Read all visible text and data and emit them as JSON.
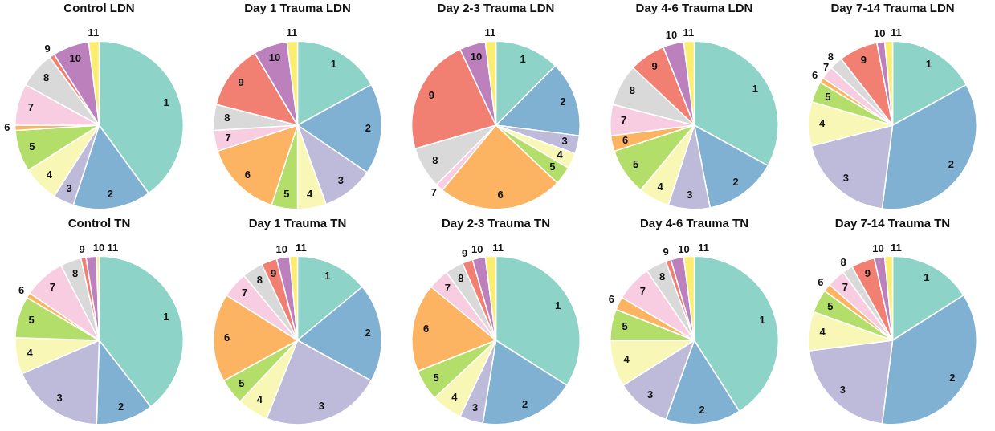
{
  "chart_data": [
    {
      "type": "pie",
      "title": "Control LDN",
      "categories": [
        "1",
        "2",
        "3",
        "4",
        "5",
        "6",
        "7",
        "8",
        "9",
        "10",
        "11"
      ],
      "values": [
        40,
        15,
        4,
        7,
        8,
        1,
        8,
        7,
        1,
        7,
        2
      ],
      "colors": [
        "#8dd3c7",
        "#80b1d3",
        "#bebada",
        "#f9f7b5",
        "#b3de69",
        "#fdb462",
        "#f9cde1",
        "#d9d9d9",
        "#f28072",
        "#bc80bd",
        "#fbed6f"
      ],
      "legend": false
    },
    {
      "type": "pie",
      "title": "Day 1 Trauma LDN",
      "categories": [
        "1",
        "2",
        "3",
        "4",
        "5",
        "6",
        "7",
        "8",
        "9",
        "10",
        "11"
      ],
      "values": [
        17,
        17.5,
        10,
        5.5,
        5,
        15,
        4,
        5,
        12.5,
        6.5,
        2
      ],
      "colors": [
        "#8dd3c7",
        "#80b1d3",
        "#bebada",
        "#f9f7b5",
        "#b3de69",
        "#fdb462",
        "#f9cde1",
        "#d9d9d9",
        "#f28072",
        "#bc80bd",
        "#fbed6f"
      ],
      "legend": false
    },
    {
      "type": "pie",
      "title": "Day 2-3 Trauma LDN",
      "categories": [
        "1",
        "2",
        "3",
        "4",
        "5",
        "6",
        "7",
        "8",
        "9",
        "10",
        "11"
      ],
      "values": [
        12.5,
        14.5,
        3.5,
        3,
        3.5,
        24,
        1.5,
        8,
        22.5,
        5,
        2
      ],
      "colors": [
        "#8dd3c7",
        "#80b1d3",
        "#bebada",
        "#f9f7b5",
        "#b3de69",
        "#fdb462",
        "#f9cde1",
        "#d9d9d9",
        "#f28072",
        "#bc80bd",
        "#fbed6f"
      ],
      "legend": false
    },
    {
      "type": "pie",
      "title": "Day 4-6 Trauma LDN",
      "categories": [
        "1",
        "2",
        "3",
        "4",
        "5",
        "6",
        "7",
        "8",
        "9",
        "10",
        "11"
      ],
      "values": [
        33,
        14,
        8,
        6,
        9,
        3,
        6,
        8,
        7,
        4,
        2
      ],
      "colors": [
        "#8dd3c7",
        "#80b1d3",
        "#bebada",
        "#f9f7b5",
        "#b3de69",
        "#fdb462",
        "#f9cde1",
        "#d9d9d9",
        "#f28072",
        "#bc80bd",
        "#fbed6f"
      ],
      "legend": false
    },
    {
      "type": "pie",
      "title": "Day 7-14 Trauma LDN",
      "categories": [
        "1",
        "2",
        "3",
        "4",
        "5",
        "6",
        "7",
        "8",
        "9",
        "10",
        "11"
      ],
      "values": [
        17,
        35,
        19,
        8.5,
        4,
        1,
        2.5,
        2.5,
        7.5,
        1.5,
        1.5
      ],
      "colors": [
        "#8dd3c7",
        "#80b1d3",
        "#bebada",
        "#f9f7b5",
        "#b3de69",
        "#fdb462",
        "#f9cde1",
        "#d9d9d9",
        "#f28072",
        "#bc80bd",
        "#fbed6f"
      ],
      "legend": false
    },
    {
      "type": "pie",
      "title": "Control TN",
      "categories": [
        "1",
        "2",
        "3",
        "4",
        "5",
        "6",
        "7",
        "8",
        "9",
        "10",
        "11"
      ],
      "values": [
        39.5,
        11,
        18,
        7,
        8,
        1,
        8,
        4,
        1,
        2,
        0.5
      ],
      "colors": [
        "#8dd3c7",
        "#80b1d3",
        "#bebada",
        "#f9f7b5",
        "#b3de69",
        "#fdb462",
        "#f9cde1",
        "#d9d9d9",
        "#f28072",
        "#bc80bd",
        "#fbed6f"
      ],
      "legend": false
    },
    {
      "type": "pie",
      "title": "Day 1 Trauma TN",
      "categories": [
        "1",
        "2",
        "3",
        "4",
        "5",
        "6",
        "7",
        "8",
        "9",
        "10",
        "11"
      ],
      "values": [
        14,
        19,
        23,
        6,
        5,
        17,
        5,
        4,
        3,
        2.5,
        1.5
      ],
      "colors": [
        "#8dd3c7",
        "#80b1d3",
        "#bebada",
        "#f9f7b5",
        "#b3de69",
        "#fdb462",
        "#f9cde1",
        "#d9d9d9",
        "#f28072",
        "#bc80bd",
        "#fbed6f"
      ],
      "legend": false
    },
    {
      "type": "pie",
      "title": "Day 2-3 Trauma TN",
      "categories": [
        "1",
        "2",
        "3",
        "4",
        "5",
        "6",
        "7",
        "8",
        "9",
        "10",
        "11"
      ],
      "values": [
        34,
        18.5,
        4.5,
        6,
        6,
        17,
        4,
        3.5,
        2,
        2.5,
        2
      ],
      "colors": [
        "#8dd3c7",
        "#80b1d3",
        "#bebada",
        "#f9f7b5",
        "#b3de69",
        "#fdb462",
        "#f9cde1",
        "#d9d9d9",
        "#f28072",
        "#bc80bd",
        "#fbed6f"
      ],
      "legend": false
    },
    {
      "type": "pie",
      "title": "Day 4-6 Trauma TN",
      "categories": [
        "1",
        "2",
        "3",
        "4",
        "5",
        "6",
        "7",
        "8",
        "9",
        "10",
        "11"
      ],
      "values": [
        41,
        14.5,
        10.5,
        9,
        6,
        2.5,
        7,
        4,
        1,
        2.5,
        2
      ],
      "colors": [
        "#8dd3c7",
        "#80b1d3",
        "#bebada",
        "#f9f7b5",
        "#b3de69",
        "#fdb462",
        "#f9cde1",
        "#d9d9d9",
        "#f28072",
        "#bc80bd",
        "#fbed6f"
      ],
      "legend": false
    },
    {
      "type": "pie",
      "title": "Day 7-14 Trauma TN",
      "categories": [
        "1",
        "2",
        "3",
        "4",
        "5",
        "6",
        "7",
        "8",
        "9",
        "10",
        "11"
      ],
      "values": [
        16,
        36,
        21,
        7.5,
        4.5,
        1.5,
        3.5,
        2,
        4.5,
        2,
        1.5
      ],
      "colors": [
        "#8dd3c7",
        "#80b1d3",
        "#bebada",
        "#f9f7b5",
        "#b3de69",
        "#fdb462",
        "#f9cde1",
        "#d9d9d9",
        "#f28072",
        "#bc80bd",
        "#fbed6f"
      ],
      "legend": false
    }
  ]
}
